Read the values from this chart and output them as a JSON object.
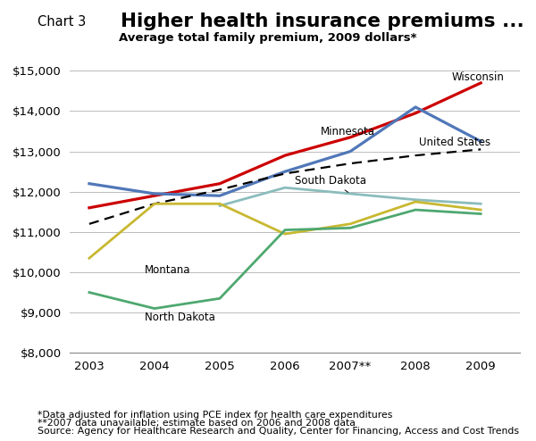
{
  "title_prefix": "Chart 3",
  "title_main": "Higher health insurance premiums ...",
  "subtitle": "Average total family premium, 2009 dollars*",
  "x_labels": [
    "2003",
    "2004",
    "2005",
    "2006",
    "2007**",
    "2008",
    "2009"
  ],
  "x_values": [
    0,
    1,
    2,
    3,
    4,
    5,
    6
  ],
  "series": {
    "Wisconsin": {
      "values": [
        11600,
        11900,
        12200,
        12900,
        13350,
        13950,
        14700
      ],
      "color": "#cc0000",
      "linewidth": 2.3,
      "linestyle": "solid"
    },
    "Minnesota": {
      "values": [
        12200,
        11950,
        11900,
        12500,
        13000,
        14100,
        13250
      ],
      "color": "#5077b8",
      "linewidth": 2.3,
      "linestyle": "solid"
    },
    "United States": {
      "values": [
        11200,
        11700,
        12050,
        12450,
        12700,
        12900,
        13050
      ],
      "color": "#000000",
      "linewidth": 1.6,
      "linestyle": "dashed"
    },
    "South Dakota": {
      "values": [
        null,
        null,
        11650,
        12100,
        11950,
        11800,
        11700
      ],
      "color": "#8bbcbc",
      "linewidth": 2.0,
      "linestyle": "solid"
    },
    "Montana": {
      "values": [
        10350,
        11700,
        11700,
        10950,
        11200,
        11750,
        11550
      ],
      "color": "#c8b830",
      "linewidth": 2.0,
      "linestyle": "solid"
    },
    "North Dakota": {
      "values": [
        9500,
        9100,
        9350,
        11050,
        11100,
        11550,
        11450
      ],
      "color": "#4ea870",
      "linewidth": 2.0,
      "linestyle": "solid"
    }
  },
  "ylim": [
    8000,
    15500
  ],
  "yticks": [
    8000,
    9000,
    10000,
    11000,
    12000,
    13000,
    14000,
    15000
  ],
  "footnote1": "*Data adjusted for inflation using PCE index for health care expenditures",
  "footnote2": "**2007 data unavailable; estimate based on 2006 and 2008 data",
  "footnote3": "Source: Agency for Healthcare Research and Quality, Center for Financing, Access and Cost Trends",
  "background_color": "#ffffff",
  "grid_color": "#bbbbbb"
}
